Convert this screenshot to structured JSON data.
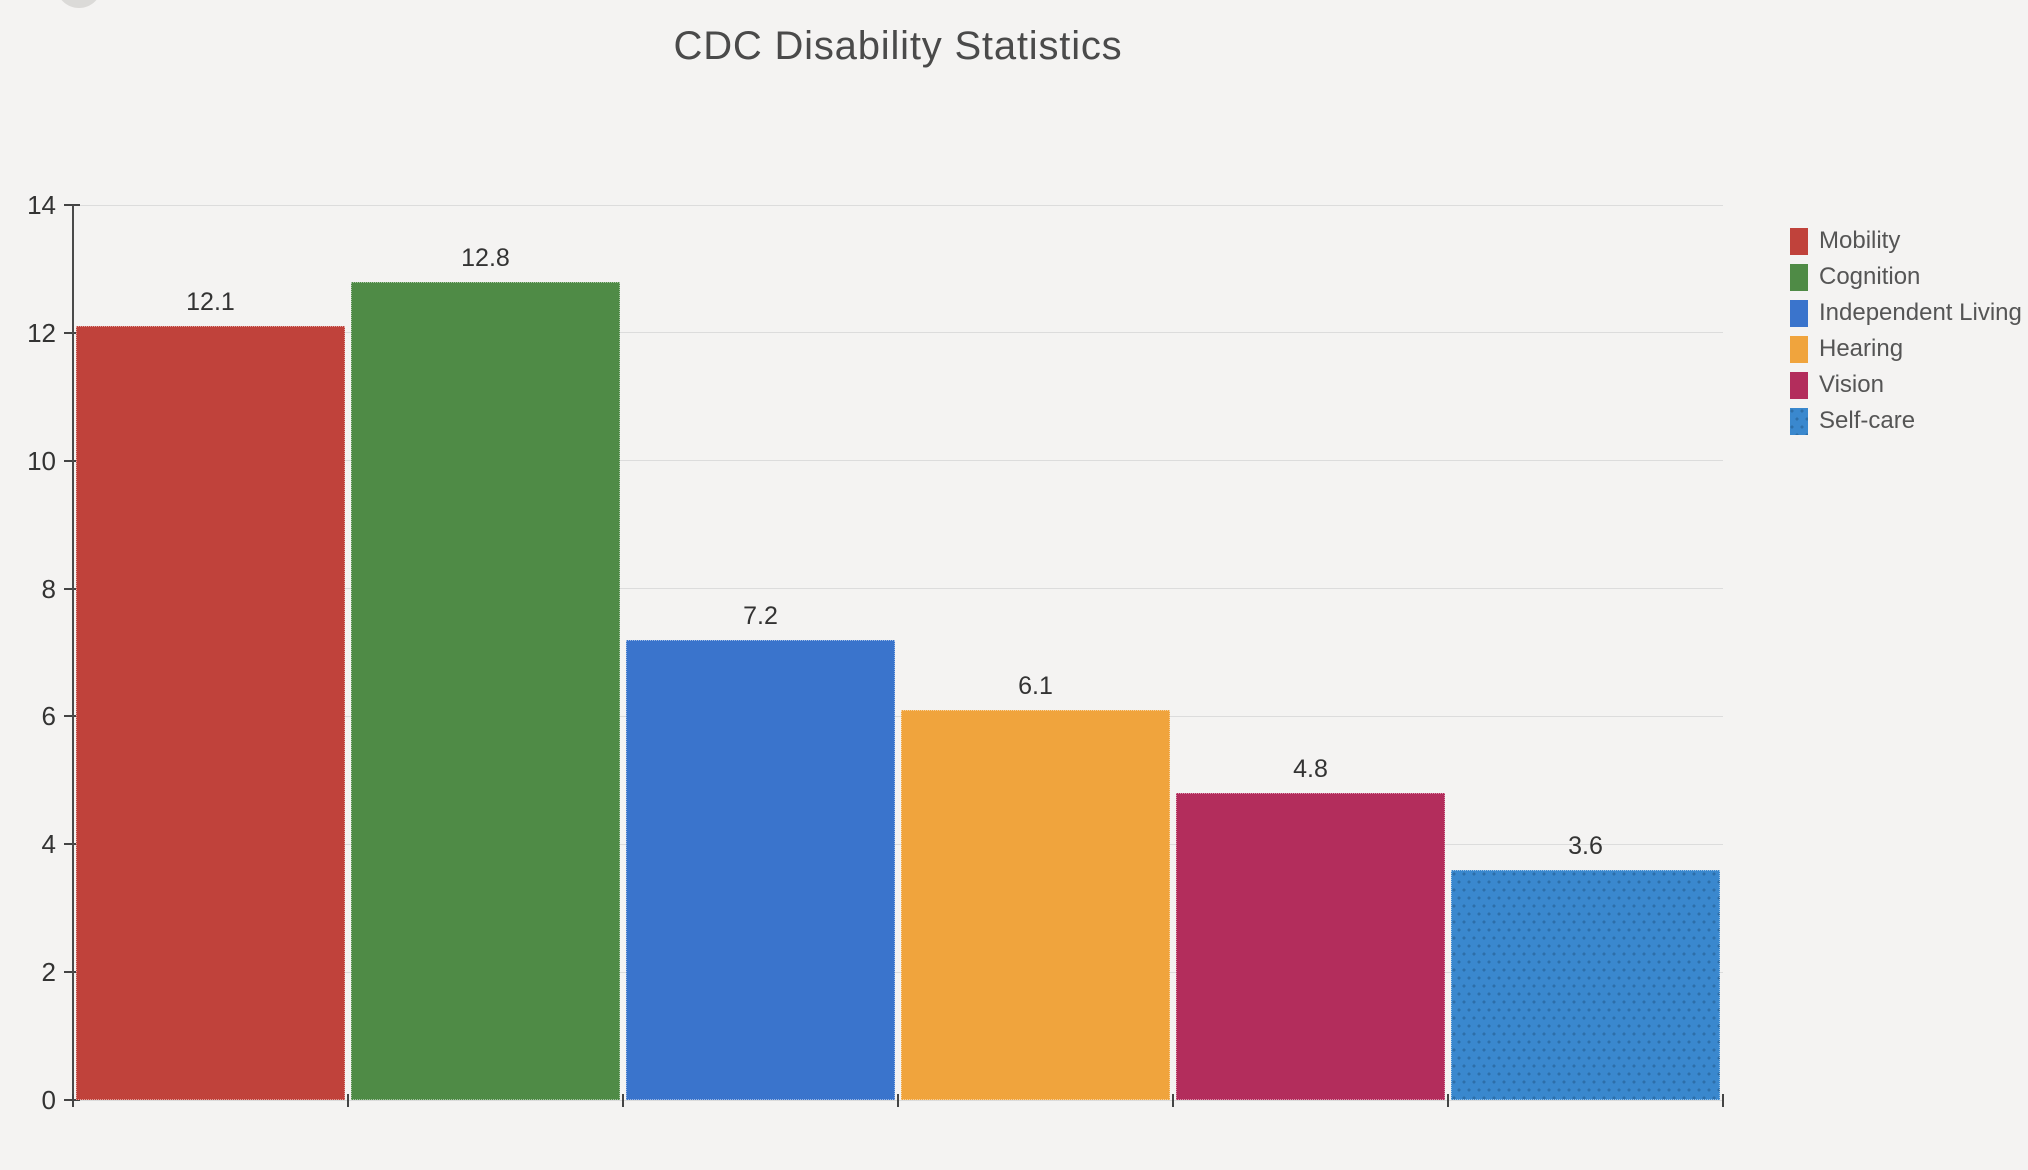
{
  "page": {
    "background": "#F4F3F2"
  },
  "chart_data": {
    "type": "bar",
    "title": "CDC Disability Statistics",
    "categories": [
      "Mobility",
      "Cognition",
      "Independent Living",
      "Hearing",
      "Vision",
      "Self-care"
    ],
    "values": [
      12.1,
      12.8,
      7.2,
      6.1,
      4.8,
      3.6
    ],
    "value_labels": [
      "12.1",
      "12.8",
      "7.2",
      "6.1",
      "4.8",
      "3.6"
    ],
    "colors": [
      "#C0423B",
      "#4F8B46",
      "#3A74CC",
      "#F0A43D",
      "#B32D5C",
      "#3A88CE"
    ],
    "patterns": [
      null,
      null,
      null,
      null,
      null,
      "dots"
    ],
    "pattern_dot_color": "#2E6FA9",
    "xlabel": "",
    "ylabel": "",
    "ylim": [
      0,
      14
    ],
    "yticks": [
      0,
      2,
      4,
      6,
      8,
      10,
      12,
      14
    ],
    "ytick_labels": [
      "0",
      "2",
      "4",
      "6",
      "8",
      "10",
      "12",
      "14"
    ],
    "grid": true,
    "legend_position": "right",
    "legend": [
      "Mobility",
      "Cognition",
      "Independent Living",
      "Hearing",
      "Vision",
      "Self-care"
    ],
    "axis_color": "#4A4A4A",
    "grid_color": "#DCDCDC",
    "tick_label_color": "#333333",
    "value_label_color": "#333333",
    "legend_text_color": "#555555",
    "title_color": "#4A4A4A"
  }
}
